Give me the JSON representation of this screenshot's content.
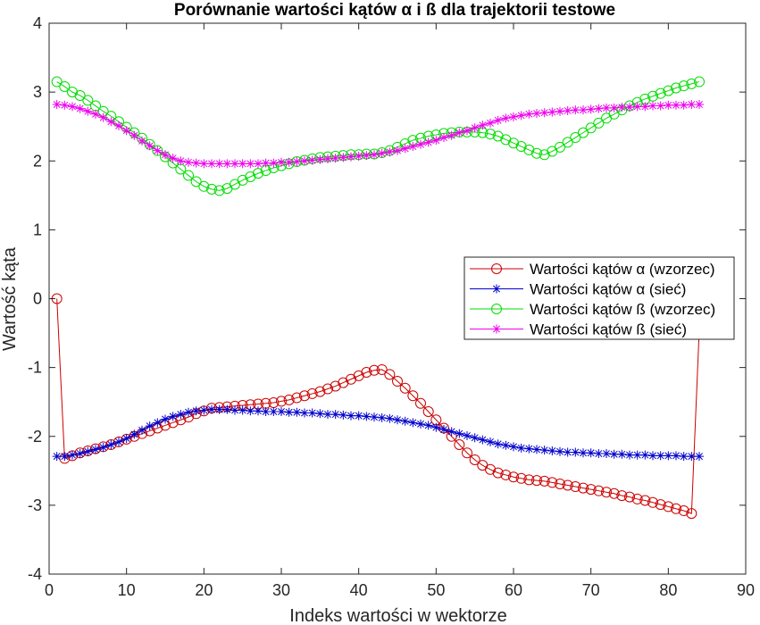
{
  "chart_data": {
    "type": "line",
    "title": "Porównanie wartości kątów α i ß dla trajektorii testowe",
    "xlabel": "Indeks wartości w wektorze",
    "ylabel": "Wartość kąta",
    "xlim": [
      0,
      90
    ],
    "ylim": [
      -4,
      4
    ],
    "xticks": [
      "0",
      "10",
      "20",
      "30",
      "40",
      "50",
      "60",
      "70",
      "80",
      "90"
    ],
    "yticks": [
      "4",
      "3",
      "2",
      "1",
      "0",
      "-1",
      "-2",
      "-3",
      "-4"
    ],
    "grid": false,
    "legend_position": "right",
    "series": [
      {
        "name": "Wartości kątów α (wzorzec)",
        "color": "#cc0000",
        "marker": "circle",
        "x": [
          1,
          2,
          3,
          4,
          5,
          6,
          7,
          8,
          9,
          10,
          11,
          12,
          13,
          14,
          15,
          16,
          17,
          18,
          19,
          20,
          21,
          22,
          23,
          24,
          25,
          26,
          27,
          28,
          29,
          30,
          31,
          32,
          33,
          34,
          35,
          36,
          37,
          38,
          39,
          40,
          41,
          42,
          43,
          44,
          45,
          46,
          47,
          48,
          49,
          50,
          51,
          52,
          53,
          54,
          55,
          56,
          57,
          58,
          59,
          60,
          61,
          62,
          63,
          64,
          65,
          66,
          67,
          68,
          69,
          70,
          71,
          72,
          73,
          74,
          75,
          76,
          77,
          78,
          79,
          80,
          81,
          82,
          83,
          84
        ],
        "y": [
          0.0,
          -2.32,
          -2.28,
          -2.24,
          -2.21,
          -2.18,
          -2.15,
          -2.12,
          -2.08,
          -2.04,
          -2.0,
          -1.96,
          -1.92,
          -1.88,
          -1.84,
          -1.8,
          -1.76,
          -1.72,
          -1.67,
          -1.63,
          -1.59,
          -1.58,
          -1.57,
          -1.56,
          -1.55,
          -1.54,
          -1.53,
          -1.52,
          -1.51,
          -1.49,
          -1.47,
          -1.44,
          -1.41,
          -1.38,
          -1.35,
          -1.31,
          -1.27,
          -1.22,
          -1.17,
          -1.12,
          -1.07,
          -1.04,
          -1.03,
          -1.1,
          -1.2,
          -1.3,
          -1.41,
          -1.52,
          -1.64,
          -1.76,
          -1.88,
          -2.0,
          -2.12,
          -2.24,
          -2.34,
          -2.42,
          -2.48,
          -2.53,
          -2.56,
          -2.59,
          -2.61,
          -2.63,
          -2.64,
          -2.65,
          -2.67,
          -2.69,
          -2.71,
          -2.73,
          -2.75,
          -2.77,
          -2.79,
          -2.81,
          -2.83,
          -2.86,
          -2.88,
          -2.91,
          -2.93,
          -2.96,
          -2.99,
          -3.02,
          -3.05,
          -3.08,
          -3.12,
          -0.45
        ]
      },
      {
        "name": "Wartości kątów α (sieć)",
        "color": "#0000cc",
        "marker": "asterisk",
        "x": [
          1,
          2,
          3,
          4,
          5,
          6,
          7,
          8,
          9,
          10,
          11,
          12,
          13,
          14,
          15,
          16,
          17,
          18,
          19,
          20,
          21,
          22,
          23,
          24,
          25,
          26,
          27,
          28,
          29,
          30,
          31,
          32,
          33,
          34,
          35,
          36,
          37,
          38,
          39,
          40,
          41,
          42,
          43,
          44,
          45,
          46,
          47,
          48,
          49,
          50,
          51,
          52,
          53,
          54,
          55,
          56,
          57,
          58,
          59,
          60,
          61,
          62,
          63,
          64,
          65,
          66,
          67,
          68,
          69,
          70,
          71,
          72,
          73,
          74,
          75,
          76,
          77,
          78,
          79,
          80,
          81,
          82,
          83,
          84
        ],
        "y": [
          -2.29,
          -2.29,
          -2.27,
          -2.25,
          -2.22,
          -2.19,
          -2.16,
          -2.12,
          -2.08,
          -2.03,
          -1.97,
          -1.91,
          -1.85,
          -1.8,
          -1.75,
          -1.71,
          -1.68,
          -1.65,
          -1.63,
          -1.62,
          -1.61,
          -1.61,
          -1.61,
          -1.62,
          -1.62,
          -1.63,
          -1.63,
          -1.64,
          -1.64,
          -1.64,
          -1.65,
          -1.65,
          -1.66,
          -1.66,
          -1.67,
          -1.68,
          -1.68,
          -1.69,
          -1.7,
          -1.7,
          -1.71,
          -1.72,
          -1.73,
          -1.74,
          -1.76,
          -1.78,
          -1.8,
          -1.82,
          -1.84,
          -1.87,
          -1.9,
          -1.93,
          -1.96,
          -1.99,
          -2.02,
          -2.05,
          -2.08,
          -2.11,
          -2.13,
          -2.15,
          -2.17,
          -2.18,
          -2.19,
          -2.2,
          -2.21,
          -2.22,
          -2.23,
          -2.23,
          -2.24,
          -2.24,
          -2.25,
          -2.25,
          -2.26,
          -2.26,
          -2.27,
          -2.27,
          -2.27,
          -2.28,
          -2.28,
          -2.28,
          -2.28,
          -2.29,
          -2.29,
          -2.29
        ]
      },
      {
        "name": "Wartości kątów ß (wzorzec)",
        "color": "#00dd00",
        "marker": "circle",
        "x": [
          1,
          2,
          3,
          4,
          5,
          6,
          7,
          8,
          9,
          10,
          11,
          12,
          13,
          14,
          15,
          16,
          17,
          18,
          19,
          20,
          21,
          22,
          23,
          24,
          25,
          26,
          27,
          28,
          29,
          30,
          31,
          32,
          33,
          34,
          35,
          36,
          37,
          38,
          39,
          40,
          41,
          42,
          43,
          44,
          45,
          46,
          47,
          48,
          49,
          50,
          51,
          52,
          53,
          54,
          55,
          56,
          57,
          58,
          59,
          60,
          61,
          62,
          63,
          64,
          65,
          66,
          67,
          68,
          69,
          70,
          71,
          72,
          73,
          74,
          75,
          76,
          77,
          78,
          79,
          80,
          81,
          82,
          83,
          84
        ],
        "y": [
          3.15,
          3.08,
          3.0,
          2.95,
          2.88,
          2.8,
          2.72,
          2.65,
          2.57,
          2.49,
          2.41,
          2.33,
          2.24,
          2.15,
          2.06,
          1.97,
          1.88,
          1.79,
          1.7,
          1.63,
          1.59,
          1.57,
          1.6,
          1.66,
          1.72,
          1.77,
          1.82,
          1.86,
          1.9,
          1.93,
          1.96,
          1.99,
          2.01,
          2.03,
          2.05,
          2.06,
          2.07,
          2.08,
          2.09,
          2.09,
          2.1,
          2.1,
          2.12,
          2.15,
          2.2,
          2.25,
          2.3,
          2.33,
          2.36,
          2.38,
          2.4,
          2.41,
          2.42,
          2.42,
          2.42,
          2.41,
          2.39,
          2.36,
          2.31,
          2.26,
          2.21,
          2.16,
          2.11,
          2.09,
          2.14,
          2.2,
          2.27,
          2.34,
          2.41,
          2.48,
          2.55,
          2.62,
          2.68,
          2.74,
          2.8,
          2.85,
          2.9,
          2.94,
          2.98,
          3.02,
          3.06,
          3.09,
          3.12,
          3.15
        ]
      },
      {
        "name": "Wartości kątów ß (sieć)",
        "color": "#ee00ee",
        "marker": "asterisk",
        "x": [
          1,
          2,
          3,
          4,
          5,
          6,
          7,
          8,
          9,
          10,
          11,
          12,
          13,
          14,
          15,
          16,
          17,
          18,
          19,
          20,
          21,
          22,
          23,
          24,
          25,
          26,
          27,
          28,
          29,
          30,
          31,
          32,
          33,
          34,
          35,
          36,
          37,
          38,
          39,
          40,
          41,
          42,
          43,
          44,
          45,
          46,
          47,
          48,
          49,
          50,
          51,
          52,
          53,
          54,
          55,
          56,
          57,
          58,
          59,
          60,
          61,
          62,
          63,
          64,
          65,
          66,
          67,
          68,
          69,
          70,
          71,
          72,
          73,
          74,
          75,
          76,
          77,
          78,
          79,
          80,
          81,
          82,
          83,
          84
        ],
        "y": [
          2.82,
          2.81,
          2.79,
          2.76,
          2.72,
          2.68,
          2.63,
          2.57,
          2.51,
          2.44,
          2.37,
          2.29,
          2.22,
          2.15,
          2.09,
          2.04,
          2.0,
          1.98,
          1.97,
          1.96,
          1.96,
          1.96,
          1.96,
          1.96,
          1.96,
          1.96,
          1.96,
          1.97,
          1.97,
          1.98,
          1.98,
          1.99,
          2.0,
          2.01,
          2.02,
          2.03,
          2.04,
          2.05,
          2.06,
          2.07,
          2.08,
          2.09,
          2.11,
          2.13,
          2.15,
          2.18,
          2.21,
          2.24,
          2.27,
          2.3,
          2.34,
          2.37,
          2.41,
          2.44,
          2.48,
          2.52,
          2.55,
          2.59,
          2.62,
          2.64,
          2.66,
          2.68,
          2.69,
          2.7,
          2.71,
          2.72,
          2.73,
          2.74,
          2.74,
          2.75,
          2.76,
          2.77,
          2.77,
          2.78,
          2.78,
          2.79,
          2.79,
          2.8,
          2.8,
          2.81,
          2.81,
          2.81,
          2.82,
          2.82
        ]
      }
    ]
  }
}
